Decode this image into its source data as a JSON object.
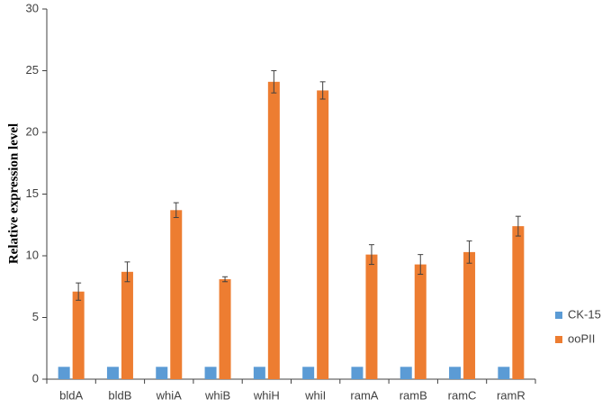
{
  "chart_data": {
    "type": "bar",
    "y_label": "Relative expression level",
    "categories": [
      "bldA",
      "bldB",
      "whiA",
      "whiB",
      "whiH",
      "whiI",
      "ramA",
      "ramB",
      "ramC",
      "ramR"
    ],
    "series": [
      {
        "name": "CK-15",
        "color": "#5b9bd5",
        "values": [
          1,
          1,
          1,
          1,
          1,
          1,
          1,
          1,
          1,
          1
        ]
      },
      {
        "name": "ooPII",
        "color": "#ed7d31",
        "values": [
          7.1,
          8.7,
          13.7,
          8.1,
          24.1,
          23.4,
          10.1,
          9.3,
          10.3,
          12.4
        ],
        "errors": [
          0.7,
          0.8,
          0.6,
          0.2,
          0.9,
          0.7,
          0.8,
          0.8,
          0.9,
          0.8
        ]
      }
    ],
    "ylim": [
      0,
      30
    ],
    "yticks": [
      0,
      5,
      10,
      15,
      20,
      25,
      30
    ],
    "legend": "right"
  }
}
